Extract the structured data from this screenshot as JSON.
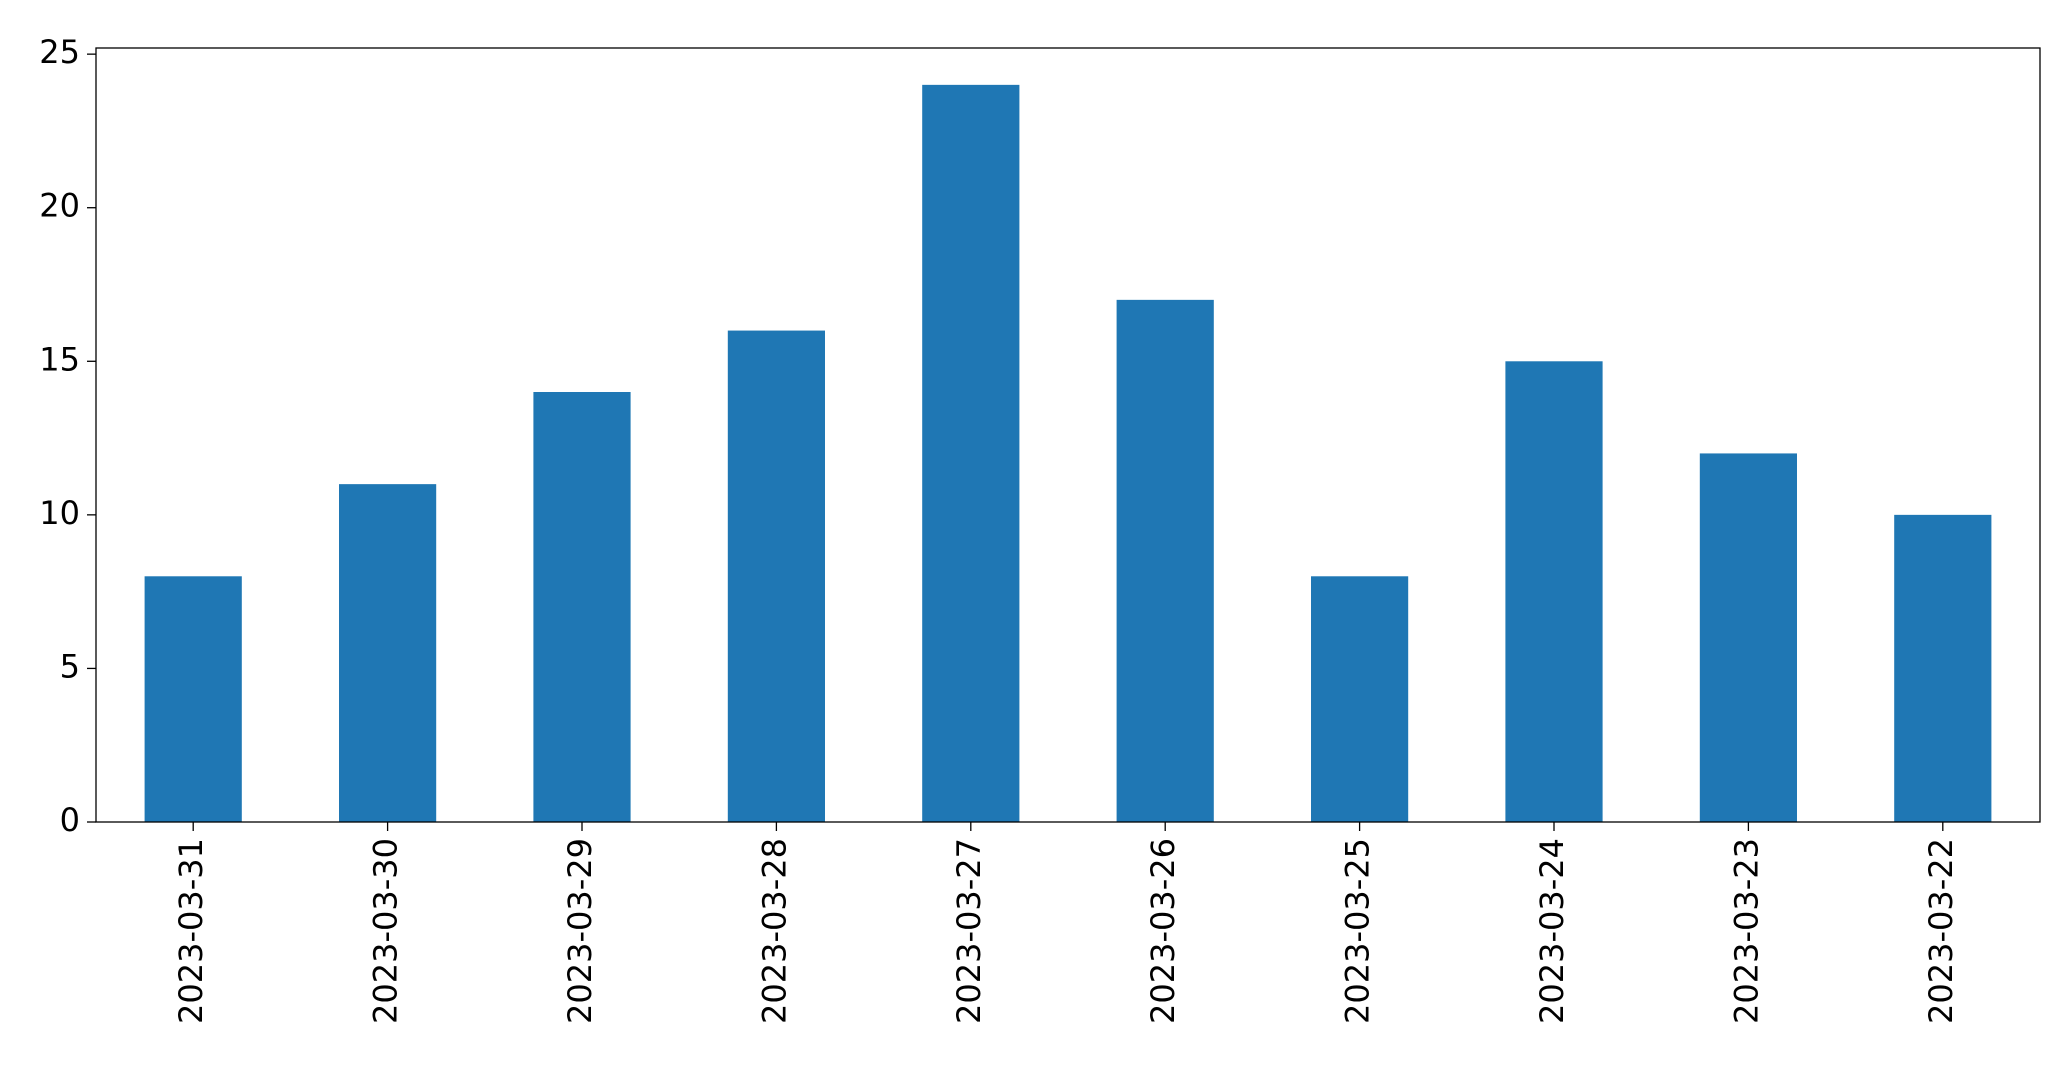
{
  "chart_data": {
    "type": "bar",
    "categories": [
      "2023-03-31",
      "2023-03-30",
      "2023-03-29",
      "2023-03-28",
      "2023-03-27",
      "2023-03-26",
      "2023-03-25",
      "2023-03-24",
      "2023-03-23",
      "2023-03-22"
    ],
    "values": [
      8,
      11,
      14,
      16,
      24,
      17,
      8,
      15,
      12,
      10
    ],
    "color": "#1f77b4",
    "ylim": [
      0,
      25.2
    ],
    "yticks": [
      0,
      5,
      10,
      15,
      20,
      25
    ],
    "grid": false
  }
}
